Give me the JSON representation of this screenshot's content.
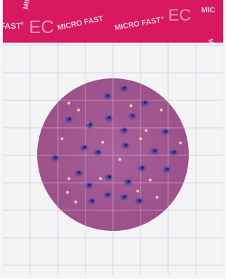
{
  "banner": {
    "brand": "MICRO FAST",
    "code": "EC",
    "fragment_left": "FAST",
    "fragment_right": "MIC",
    "reg_mark": "®",
    "color": "#d8185f",
    "text_color": "#f7c9da"
  },
  "plate": {
    "medium_color": "#a7578f",
    "grid_color": "#d8d9de",
    "colony_color": "#3d3f9e",
    "pale_colony_color": "#e8d7b0",
    "colonies_visible": true
  }
}
